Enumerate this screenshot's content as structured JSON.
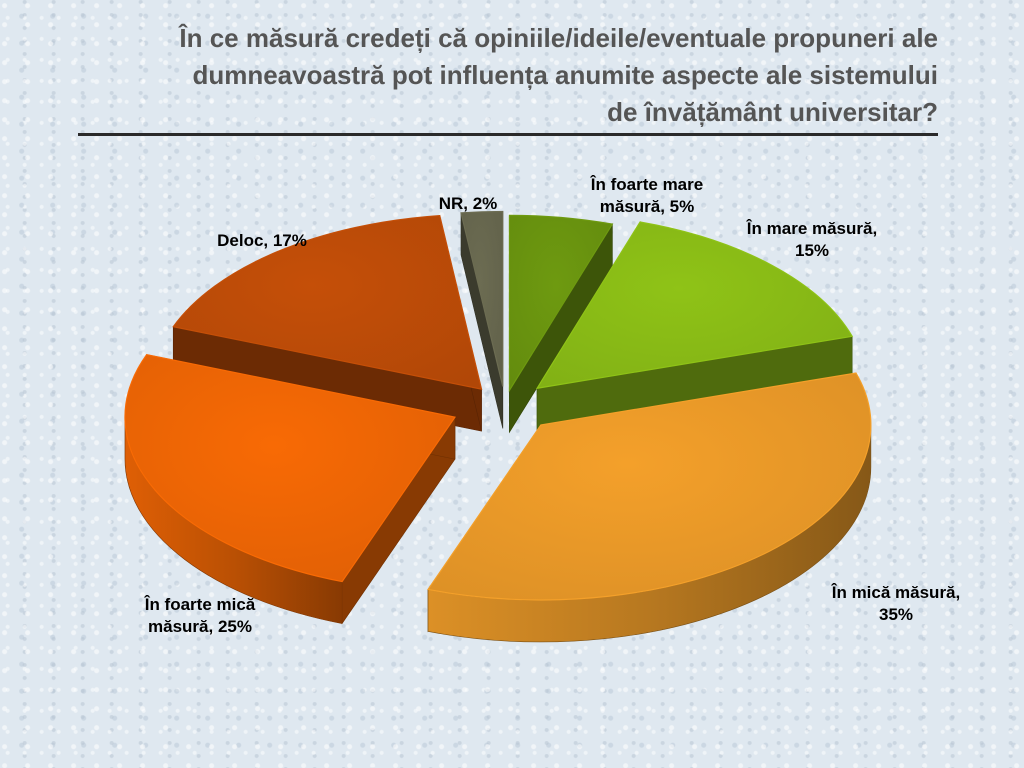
{
  "title": "În ce măsură credeți că opiniile/ideile/eventuale propuneri ale\ndumneavoastră pot influența anumite aspecte ale sistemului\nde învățământ universitar?",
  "chart_data": {
    "type": "pie",
    "three_d": true,
    "exploded": true,
    "slices": [
      {
        "label_lines": [
          "În foarte mare",
          "măsură, 5%"
        ],
        "category": "În foarte mare măsură",
        "value": 5,
        "color": "#6e9a10"
      },
      {
        "label_lines": [
          "În mare măsură,",
          "15%"
        ],
        "category": "În mare măsură",
        "value": 15,
        "color": "#8fc317"
      },
      {
        "label_lines": [
          "În mică măsură,",
          "35%"
        ],
        "category": "În mică măsură",
        "value": 35,
        "color": "#f4a02a"
      },
      {
        "label_lines": [
          "În foarte mică",
          "măsură, 25%"
        ],
        "category": "În foarte mică măsură",
        "value": 25,
        "color": "#f86a05"
      },
      {
        "label_lines": [
          "Deloc, 17%"
        ],
        "category": "Deloc",
        "value": 17,
        "color": "#c54f08"
      },
      {
        "label_lines": [
          "NR, 2%"
        ],
        "category": "NR",
        "value": 2,
        "color": "#6c6c52"
      }
    ]
  }
}
